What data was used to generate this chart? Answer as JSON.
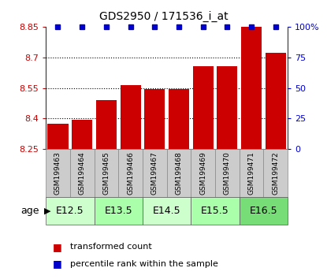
{
  "title": "GDS2950 / 171536_i_at",
  "samples": [
    "GSM199463",
    "GSM199464",
    "GSM199465",
    "GSM199466",
    "GSM199467",
    "GSM199468",
    "GSM199469",
    "GSM199470",
    "GSM199471",
    "GSM199472"
  ],
  "bar_values": [
    8.375,
    8.395,
    8.49,
    8.565,
    8.545,
    8.545,
    8.655,
    8.655,
    8.855,
    8.72
  ],
  "percentile_values": [
    100,
    100,
    100,
    100,
    100,
    100,
    100,
    100,
    100,
    100
  ],
  "bar_color": "#cc0000",
  "dot_color": "#0000cc",
  "ylim_left": [
    8.25,
    8.85
  ],
  "ylim_right": [
    0,
    100
  ],
  "yticks_left": [
    8.25,
    8.4,
    8.55,
    8.7,
    8.85
  ],
  "yticks_right": [
    0,
    25,
    50,
    75,
    100
  ],
  "yticklabels_right": [
    "0",
    "25",
    "50",
    "75",
    "100%"
  ],
  "grid_lines": [
    8.4,
    8.55,
    8.7
  ],
  "age_groups": [
    {
      "label": "E12.5",
      "start": 0,
      "end": 2,
      "color": "#ccffcc"
    },
    {
      "label": "E13.5",
      "start": 2,
      "end": 4,
      "color": "#aaffaa"
    },
    {
      "label": "E14.5",
      "start": 4,
      "end": 6,
      "color": "#ccffcc"
    },
    {
      "label": "E15.5",
      "start": 6,
      "end": 8,
      "color": "#aaffaa"
    },
    {
      "label": "E16.5",
      "start": 8,
      "end": 10,
      "color": "#77dd77"
    }
  ],
  "bar_bottom": 8.25,
  "bar_color_left": "#cc0000",
  "ylabel_right_color": "#0000cc",
  "sample_box_color": "#cccccc",
  "sample_box_edge": "#888888",
  "legend_items": [
    {
      "label": "transformed count",
      "color": "#cc0000"
    },
    {
      "label": "percentile rank within the sample",
      "color": "#0000cc"
    }
  ]
}
